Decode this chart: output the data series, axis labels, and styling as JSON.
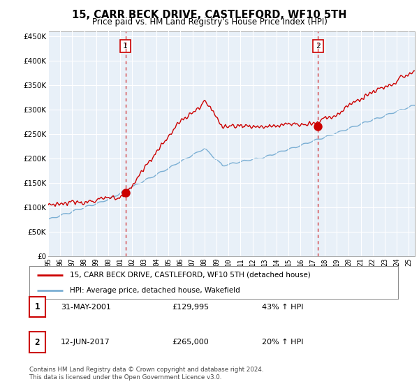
{
  "title": "15, CARR BECK DRIVE, CASTLEFORD, WF10 5TH",
  "subtitle": "Price paid vs. HM Land Registry's House Price Index (HPI)",
  "ylabel_ticks": [
    "£0",
    "£50K",
    "£100K",
    "£150K",
    "£200K",
    "£250K",
    "£300K",
    "£350K",
    "£400K",
    "£450K"
  ],
  "ytick_values": [
    0,
    50000,
    100000,
    150000,
    200000,
    250000,
    300000,
    350000,
    400000,
    450000
  ],
  "ylim": [
    0,
    460000
  ],
  "xlim_start": 1995.0,
  "xlim_end": 2025.5,
  "sale1_date": 2001.42,
  "sale1_price": 129995,
  "sale2_date": 2017.45,
  "sale2_price": 265000,
  "red_color": "#cc0000",
  "blue_color": "#7bafd4",
  "blue_fill": "#ddeeff",
  "vline_color": "#cc0000",
  "legend_line1": "15, CARR BECK DRIVE, CASTLEFORD, WF10 5TH (detached house)",
  "legend_line2": "HPI: Average price, detached house, Wakefield",
  "table_row1": [
    "1",
    "31-MAY-2001",
    "£129,995",
    "43% ↑ HPI"
  ],
  "table_row2": [
    "2",
    "12-JUN-2017",
    "£265,000",
    "20% ↑ HPI"
  ],
  "footer": "Contains HM Land Registry data © Crown copyright and database right 2024.\nThis data is licensed under the Open Government Licence v3.0.",
  "background_color": "#ffffff",
  "plot_bg_color": "#e8f0f8",
  "grid_color": "#ffffff"
}
